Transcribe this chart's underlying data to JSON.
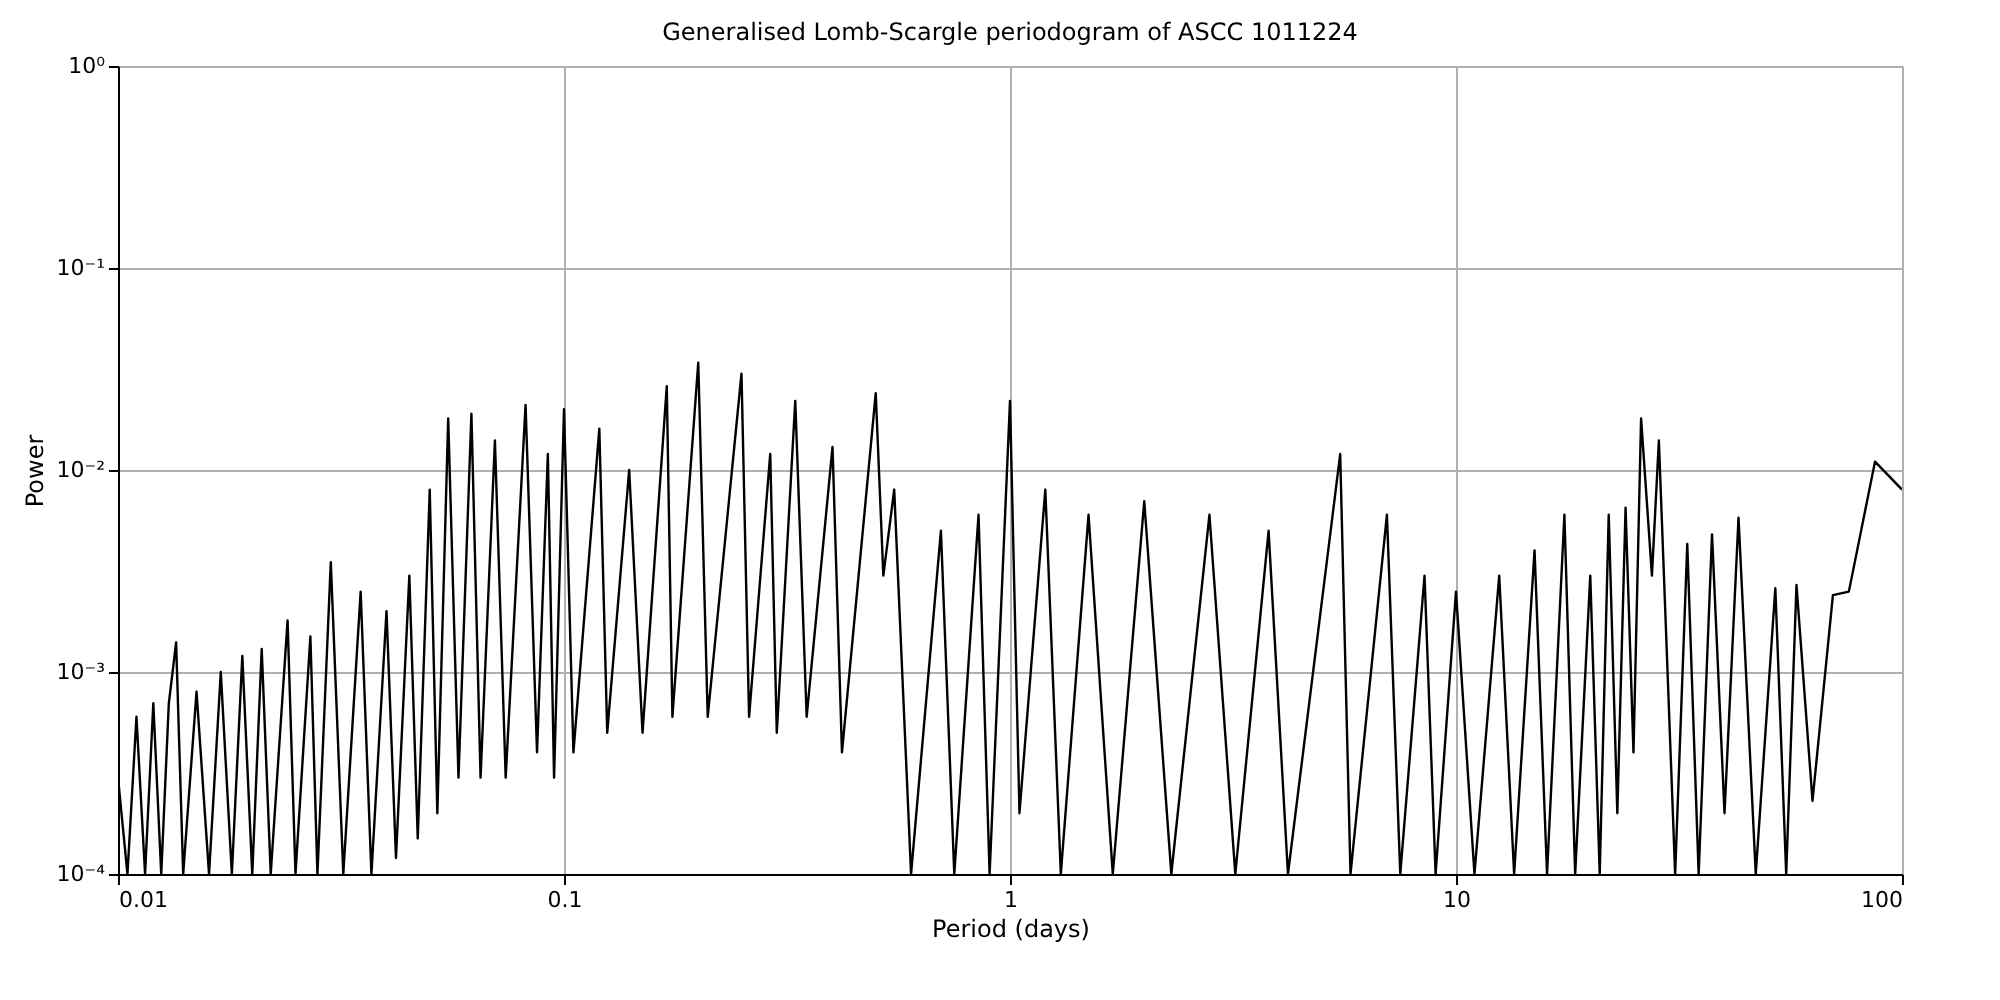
{
  "chart_data": {
    "type": "line",
    "title": "Generalised Lomb-Scargle periodogram of ASCC 1011224",
    "xlabel": "Period (days)",
    "ylabel": "Power",
    "log": "xy",
    "grid": true,
    "marker": "none",
    "line_style": "solid",
    "xlim": [
      0.01,
      100
    ],
    "xticks": [
      0.01,
      0.1,
      1,
      10,
      100
    ],
    "ylim": [
      0.0001,
      1
    ],
    "yticks": [
      {
        "value": 0.0001,
        "label": "10⁻⁴"
      },
      {
        "value": 0.001,
        "label": "10⁻³"
      },
      {
        "value": 0.01,
        "label": "10⁻²"
      },
      {
        "value": 0.1,
        "label": "10⁻¹"
      },
      {
        "value": 1,
        "label": "10⁰"
      }
    ],
    "x": [
      0.01,
      0.0105,
      0.011,
      0.0115,
      0.012,
      0.0125,
      0.013,
      0.0135,
      0.014,
      0.015,
      0.016,
      0.017,
      0.018,
      0.019,
      0.02,
      0.021,
      0.022,
      0.024,
      0.025,
      0.027,
      0.028,
      0.03,
      0.032,
      0.035,
      0.037,
      0.04,
      0.042,
      0.045,
      0.047,
      0.05,
      0.052,
      0.055,
      0.058,
      0.062,
      0.065,
      0.07,
      0.074,
      0.082,
      0.087,
      0.092,
      0.095,
      0.1,
      0.105,
      0.12,
      0.125,
      0.14,
      0.15,
      0.17,
      0.175,
      0.2,
      0.21,
      0.25,
      0.26,
      0.29,
      0.3,
      0.33,
      0.35,
      0.4,
      0.42,
      0.5,
      0.52,
      0.55,
      0.6,
      0.7,
      0.75,
      0.85,
      0.9,
      1.0,
      1.05,
      1.2,
      1.3,
      1.5,
      1.7,
      2.0,
      2.3,
      2.8,
      3.2,
      3.8,
      4.2,
      5.5,
      5.8,
      7.0,
      7.5,
      8.5,
      9.0,
      10.0,
      11.0,
      12.5,
      13.5,
      15,
      16,
      17.5,
      18.5,
      20,
      21,
      22,
      23,
      24,
      25,
      26,
      27.5,
      28.5,
      31,
      33,
      35,
      37.5,
      40,
      43,
      47,
      52,
      55,
      58,
      63,
      70,
      76,
      87,
      100
    ],
    "series": [
      {
        "color": "#000000",
        "values": [
          0.0003,
          0.0001,
          0.0006,
          0.0001,
          0.0007,
          0.0001,
          0.0007,
          0.0014,
          0.0001,
          0.0008,
          0.0001,
          0.001,
          0.0001,
          0.0012,
          0.0001,
          0.0013,
          0.0001,
          0.0018,
          0.0001,
          0.0015,
          0.0001,
          0.0035,
          0.0001,
          0.0025,
          0.0001,
          0.002,
          0.00012,
          0.003,
          0.00015,
          0.008,
          0.0002,
          0.018,
          0.0003,
          0.019,
          0.0003,
          0.014,
          0.0003,
          0.021,
          0.0004,
          0.012,
          0.0003,
          0.02,
          0.0004,
          0.016,
          0.0005,
          0.01,
          0.0005,
          0.026,
          0.0006,
          0.034,
          0.0006,
          0.03,
          0.0006,
          0.012,
          0.0005,
          0.022,
          0.0006,
          0.013,
          0.0004,
          0.024,
          0.003,
          0.008,
          0.0001,
          0.005,
          0.0001,
          0.006,
          0.0001,
          0.022,
          0.0002,
          0.008,
          0.0001,
          0.006,
          0.0001,
          0.007,
          0.0001,
          0.006,
          0.0001,
          0.005,
          0.0001,
          0.012,
          0.0001,
          0.006,
          0.0001,
          0.003,
          0.0001,
          0.0025,
          0.0001,
          0.003,
          0.0001,
          0.004,
          0.0001,
          0.006,
          0.0001,
          0.003,
          0.0001,
          0.006,
          0.0002,
          0.0065,
          0.0004,
          0.018,
          0.003,
          0.014,
          0.0001,
          0.0043,
          0.0001,
          0.0048,
          0.0002,
          0.0058,
          0.0001,
          0.0026,
          0.0001,
          0.0027,
          0.00023,
          0.0024,
          0.0025,
          0.011,
          0.008
        ]
      }
    ]
  }
}
